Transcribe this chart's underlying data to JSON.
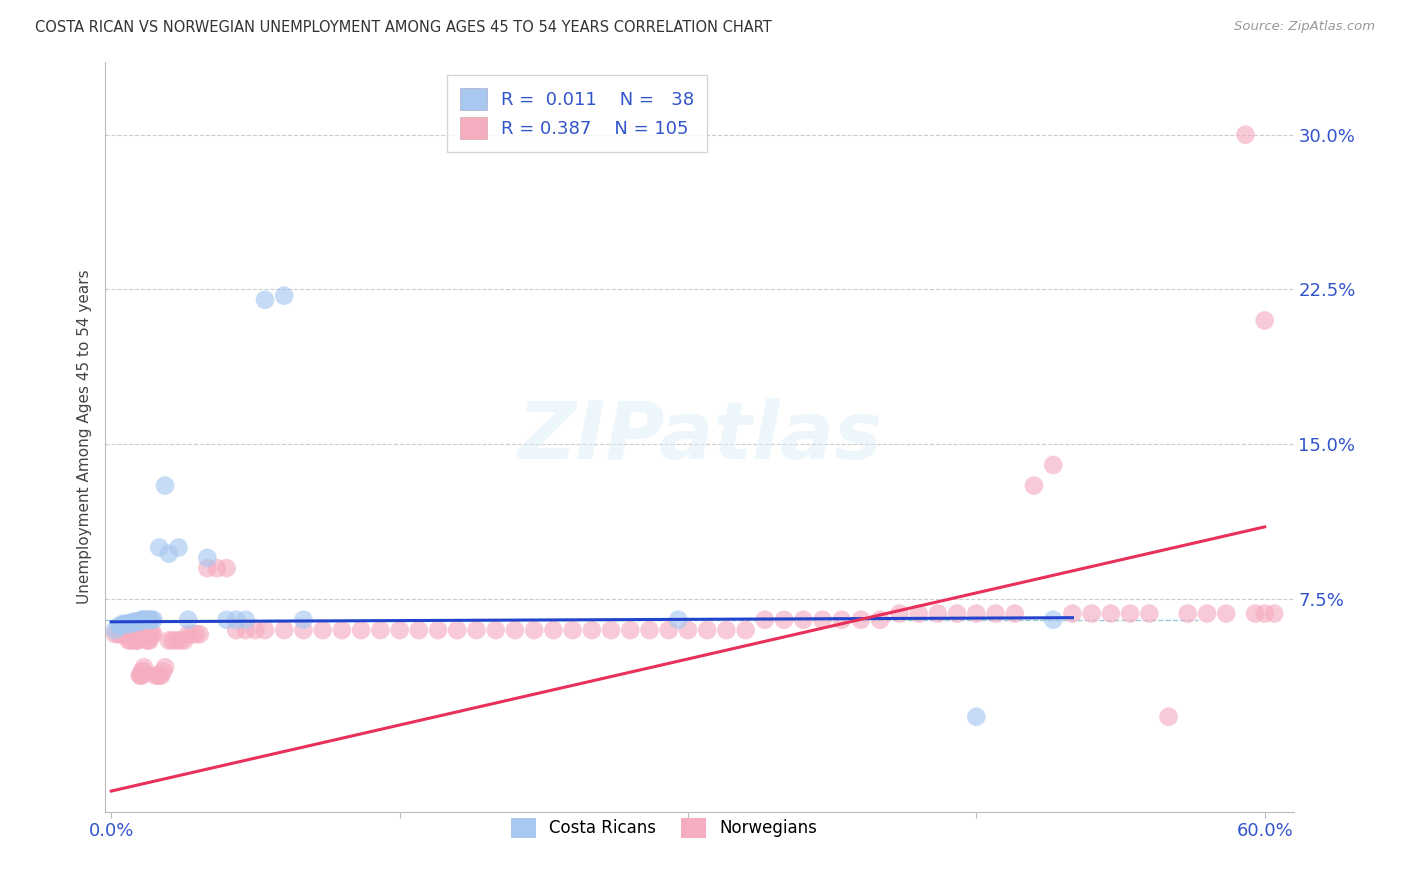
{
  "title": "COSTA RICAN VS NORWEGIAN UNEMPLOYMENT AMONG AGES 45 TO 54 YEARS CORRELATION CHART",
  "source": "Source: ZipAtlas.com",
  "ylabel": "Unemployment Among Ages 45 to 54 years",
  "xlim": [
    -0.003,
    0.615
  ],
  "ylim": [
    -0.028,
    0.335
  ],
  "xtick_vals": [
    0.0,
    0.15,
    0.3,
    0.45,
    0.6
  ],
  "xtick_labels": [
    "0.0%",
    "",
    "",
    "",
    "60.0%"
  ],
  "yticks_right": [
    0.075,
    0.15,
    0.225,
    0.3
  ],
  "ytick_labels_right": [
    "7.5%",
    "15.0%",
    "22.5%",
    "30.0%"
  ],
  "blue_R": 0.011,
  "blue_N": 38,
  "pink_R": 0.387,
  "pink_N": 105,
  "blue_color": "#a8c8f0",
  "pink_color": "#f5adc0",
  "blue_line_color": "#2244cc",
  "pink_line_color": "#e8305a",
  "blue_label": "Costa Ricans",
  "pink_label": "Norwegians",
  "watermark": "ZIPatlas",
  "background_color": "#ffffff",
  "grid_color": "#cccccc",
  "dashed_line_y": 0.065,
  "blue_x": [
    0.002,
    0.004,
    0.005,
    0.006,
    0.007,
    0.008,
    0.009,
    0.01,
    0.011,
    0.012,
    0.013,
    0.013,
    0.014,
    0.015,
    0.016,
    0.016,
    0.017,
    0.018,
    0.019,
    0.02,
    0.02,
    0.021,
    0.022,
    0.025,
    0.028,
    0.03,
    0.035,
    0.04,
    0.05,
    0.06,
    0.065,
    0.07,
    0.08,
    0.09,
    0.1,
    0.295,
    0.45,
    0.49
  ],
  "blue_y": [
    0.06,
    0.062,
    0.062,
    0.063,
    0.063,
    0.063,
    0.063,
    0.063,
    0.064,
    0.064,
    0.064,
    0.064,
    0.064,
    0.064,
    0.065,
    0.065,
    0.065,
    0.065,
    0.065,
    0.065,
    0.065,
    0.065,
    0.065,
    0.1,
    0.13,
    0.097,
    0.1,
    0.065,
    0.095,
    0.065,
    0.065,
    0.065,
    0.22,
    0.222,
    0.065,
    0.065,
    0.018,
    0.065
  ],
  "pink_x": [
    0.002,
    0.004,
    0.005,
    0.006,
    0.007,
    0.008,
    0.009,
    0.01,
    0.01,
    0.011,
    0.012,
    0.013,
    0.013,
    0.014,
    0.015,
    0.015,
    0.016,
    0.016,
    0.017,
    0.017,
    0.018,
    0.018,
    0.019,
    0.019,
    0.02,
    0.02,
    0.021,
    0.022,
    0.023,
    0.024,
    0.025,
    0.026,
    0.027,
    0.028,
    0.03,
    0.032,
    0.034,
    0.036,
    0.038,
    0.04,
    0.042,
    0.044,
    0.046,
    0.05,
    0.055,
    0.06,
    0.065,
    0.07,
    0.075,
    0.08,
    0.09,
    0.1,
    0.11,
    0.12,
    0.13,
    0.14,
    0.15,
    0.16,
    0.17,
    0.18,
    0.19,
    0.2,
    0.21,
    0.22,
    0.23,
    0.24,
    0.25,
    0.26,
    0.27,
    0.28,
    0.29,
    0.3,
    0.31,
    0.32,
    0.33,
    0.34,
    0.35,
    0.36,
    0.37,
    0.38,
    0.39,
    0.4,
    0.41,
    0.42,
    0.43,
    0.44,
    0.45,
    0.46,
    0.47,
    0.48,
    0.49,
    0.5,
    0.51,
    0.52,
    0.53,
    0.54,
    0.55,
    0.56,
    0.57,
    0.58,
    0.59,
    0.595,
    0.6,
    0.605,
    0.6
  ],
  "pink_y": [
    0.058,
    0.058,
    0.058,
    0.058,
    0.058,
    0.058,
    0.055,
    0.055,
    0.058,
    0.058,
    0.055,
    0.055,
    0.055,
    0.055,
    0.038,
    0.038,
    0.038,
    0.04,
    0.04,
    0.042,
    0.058,
    0.058,
    0.055,
    0.055,
    0.055,
    0.058,
    0.058,
    0.058,
    0.038,
    0.038,
    0.038,
    0.038,
    0.04,
    0.042,
    0.055,
    0.055,
    0.055,
    0.055,
    0.055,
    0.058,
    0.058,
    0.058,
    0.058,
    0.09,
    0.09,
    0.09,
    0.06,
    0.06,
    0.06,
    0.06,
    0.06,
    0.06,
    0.06,
    0.06,
    0.06,
    0.06,
    0.06,
    0.06,
    0.06,
    0.06,
    0.06,
    0.06,
    0.06,
    0.06,
    0.06,
    0.06,
    0.06,
    0.06,
    0.06,
    0.06,
    0.06,
    0.06,
    0.06,
    0.06,
    0.06,
    0.065,
    0.065,
    0.065,
    0.065,
    0.065,
    0.065,
    0.065,
    0.068,
    0.068,
    0.068,
    0.068,
    0.068,
    0.068,
    0.068,
    0.13,
    0.14,
    0.068,
    0.068,
    0.068,
    0.068,
    0.068,
    0.018,
    0.068,
    0.068,
    0.068,
    0.3,
    0.068,
    0.068,
    0.068,
    0.21
  ]
}
